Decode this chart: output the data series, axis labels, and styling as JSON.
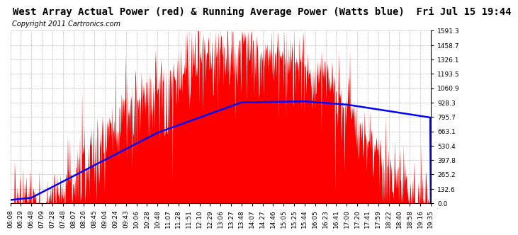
{
  "title": "West Array Actual Power (red) & Running Average Power (Watts blue)  Fri Jul 15 19:44",
  "copyright": "Copyright 2011 Cartronics.com",
  "yticks": [
    0.0,
    132.6,
    265.2,
    397.8,
    530.4,
    663.1,
    795.7,
    928.3,
    1060.9,
    1193.5,
    1326.1,
    1458.7,
    1591.3
  ],
  "ymax": 1591.3,
  "xtick_labels": [
    "06:08",
    "06:29",
    "06:48",
    "07:09",
    "07:28",
    "07:48",
    "08:07",
    "08:26",
    "08:45",
    "09:04",
    "09:24",
    "09:43",
    "10:06",
    "10:28",
    "10:48",
    "11:07",
    "11:28",
    "11:51",
    "12:10",
    "12:29",
    "13:06",
    "13:27",
    "13:48",
    "14:07",
    "14:27",
    "14:46",
    "15:05",
    "15:25",
    "15:44",
    "16:05",
    "16:23",
    "16:41",
    "17:00",
    "17:20",
    "17:41",
    "17:59",
    "18:22",
    "18:40",
    "18:58",
    "19:16",
    "19:35"
  ],
  "red_color": "#FF0000",
  "blue_color": "#0000FF",
  "bg_color": "#FFFFFF",
  "grid_color": "#CCCCCC",
  "title_fontsize": 10,
  "copyright_fontsize": 7,
  "tick_label_fontsize": 6.5
}
